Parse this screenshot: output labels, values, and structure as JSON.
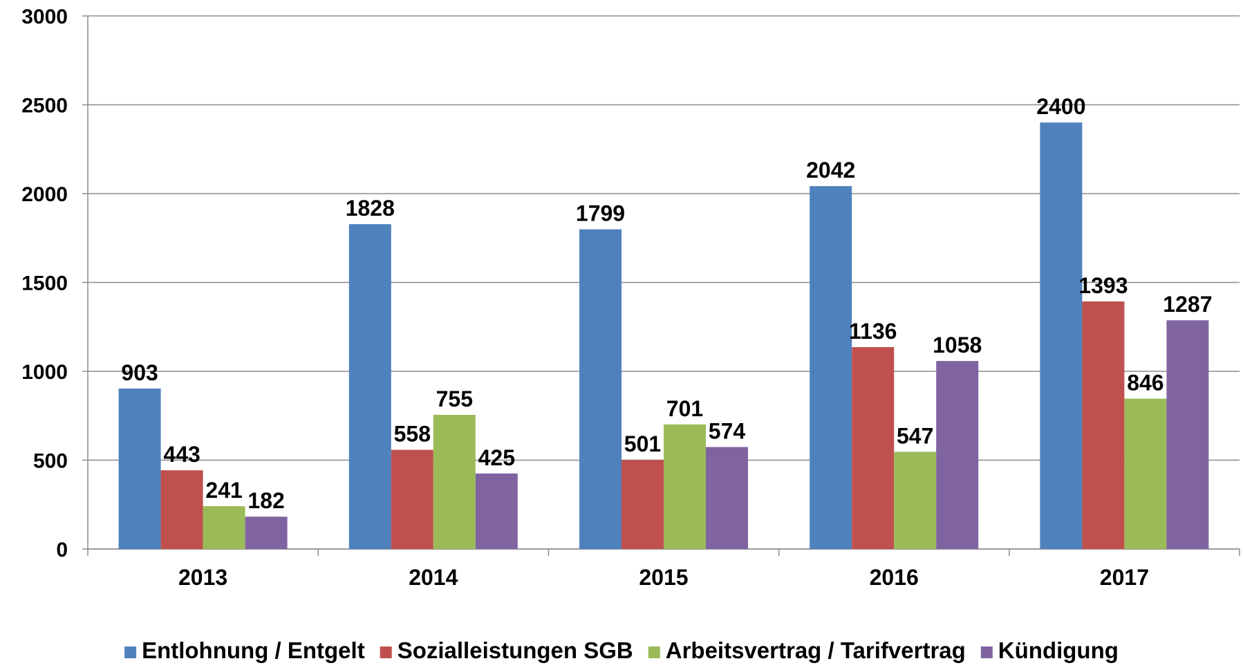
{
  "chart_data": {
    "type": "bar",
    "categories": [
      "2013",
      "2014",
      "2015",
      "2016",
      "2017"
    ],
    "series": [
      {
        "name": "Entlohnung / Entgelt",
        "color": "#4f81bd",
        "values": [
          903,
          1828,
          1799,
          2042,
          2400
        ]
      },
      {
        "name": "Sozialleistungen SGB",
        "color": "#c0504d",
        "values": [
          443,
          558,
          501,
          1136,
          1393
        ]
      },
      {
        "name": "Arbeitsvertrag / Tarifvertrag",
        "color": "#9bbb59",
        "values": [
          241,
          755,
          701,
          547,
          846
        ]
      },
      {
        "name": "Kündigung",
        "color": "#8064a2",
        "values": [
          182,
          425,
          574,
          1058,
          1287
        ]
      }
    ],
    "ylim": [
      0,
      3000
    ],
    "yticks": [
      0,
      500,
      1000,
      1500,
      2000,
      2500,
      3000
    ],
    "grid": true,
    "legend": "bottom"
  }
}
